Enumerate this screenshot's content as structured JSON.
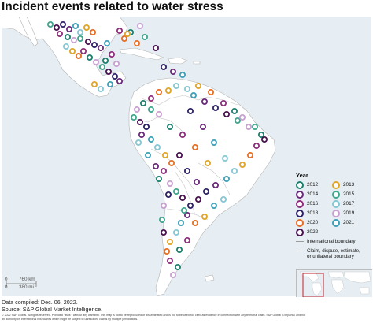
{
  "title": "Incident events related to water stress",
  "legend": {
    "title": "Year",
    "years": [
      {
        "label": "2012",
        "color": "#1e7f6e"
      },
      {
        "label": "2013",
        "color": "#e0a526"
      },
      {
        "label": "2014",
        "color": "#6a2a7a"
      },
      {
        "label": "2015",
        "color": "#3fa58c"
      },
      {
        "label": "2016",
        "color": "#8e2f7c"
      },
      {
        "label": "2017",
        "color": "#86c7d3"
      },
      {
        "label": "2018",
        "color": "#2e2266"
      },
      {
        "label": "2019",
        "color": "#c8a0d0"
      },
      {
        "label": "2020",
        "color": "#e66e24"
      },
      {
        "label": "2021",
        "color": "#3e9fb8"
      },
      {
        "label": "2022",
        "color": "#4a1251"
      }
    ],
    "international_boundary": "International boundary",
    "claim_boundary_line1": "Claim, dispute, estimate,",
    "claim_boundary_line2": "or unilateral boundary"
  },
  "scale": {
    "km": "760 km",
    "mi": "380 mi",
    "zero": "0"
  },
  "footer": {
    "compiled": "Data compiled: Dec. 06, 2022.",
    "source": "Source: S&P Global Market Intelligence.",
    "disclaimer_line1": "© 2022 S&P Global. All rights reserved. Provided \"as is\", without any warranty. This map is not to be reproduced or disseminated and is not to be used nor cited as evidence in connection with any territorial claim. S&P Global is impartial and not",
    "disclaimer_line2": "an authority on international boundaries which might be subject to unresolved claims by multiple jurisdictions."
  },
  "colors": {
    "land": "#ffffff",
    "water": "#e6eef3",
    "boundary": "#b3b3b3",
    "inset_box": "#c0202a"
  }
}
